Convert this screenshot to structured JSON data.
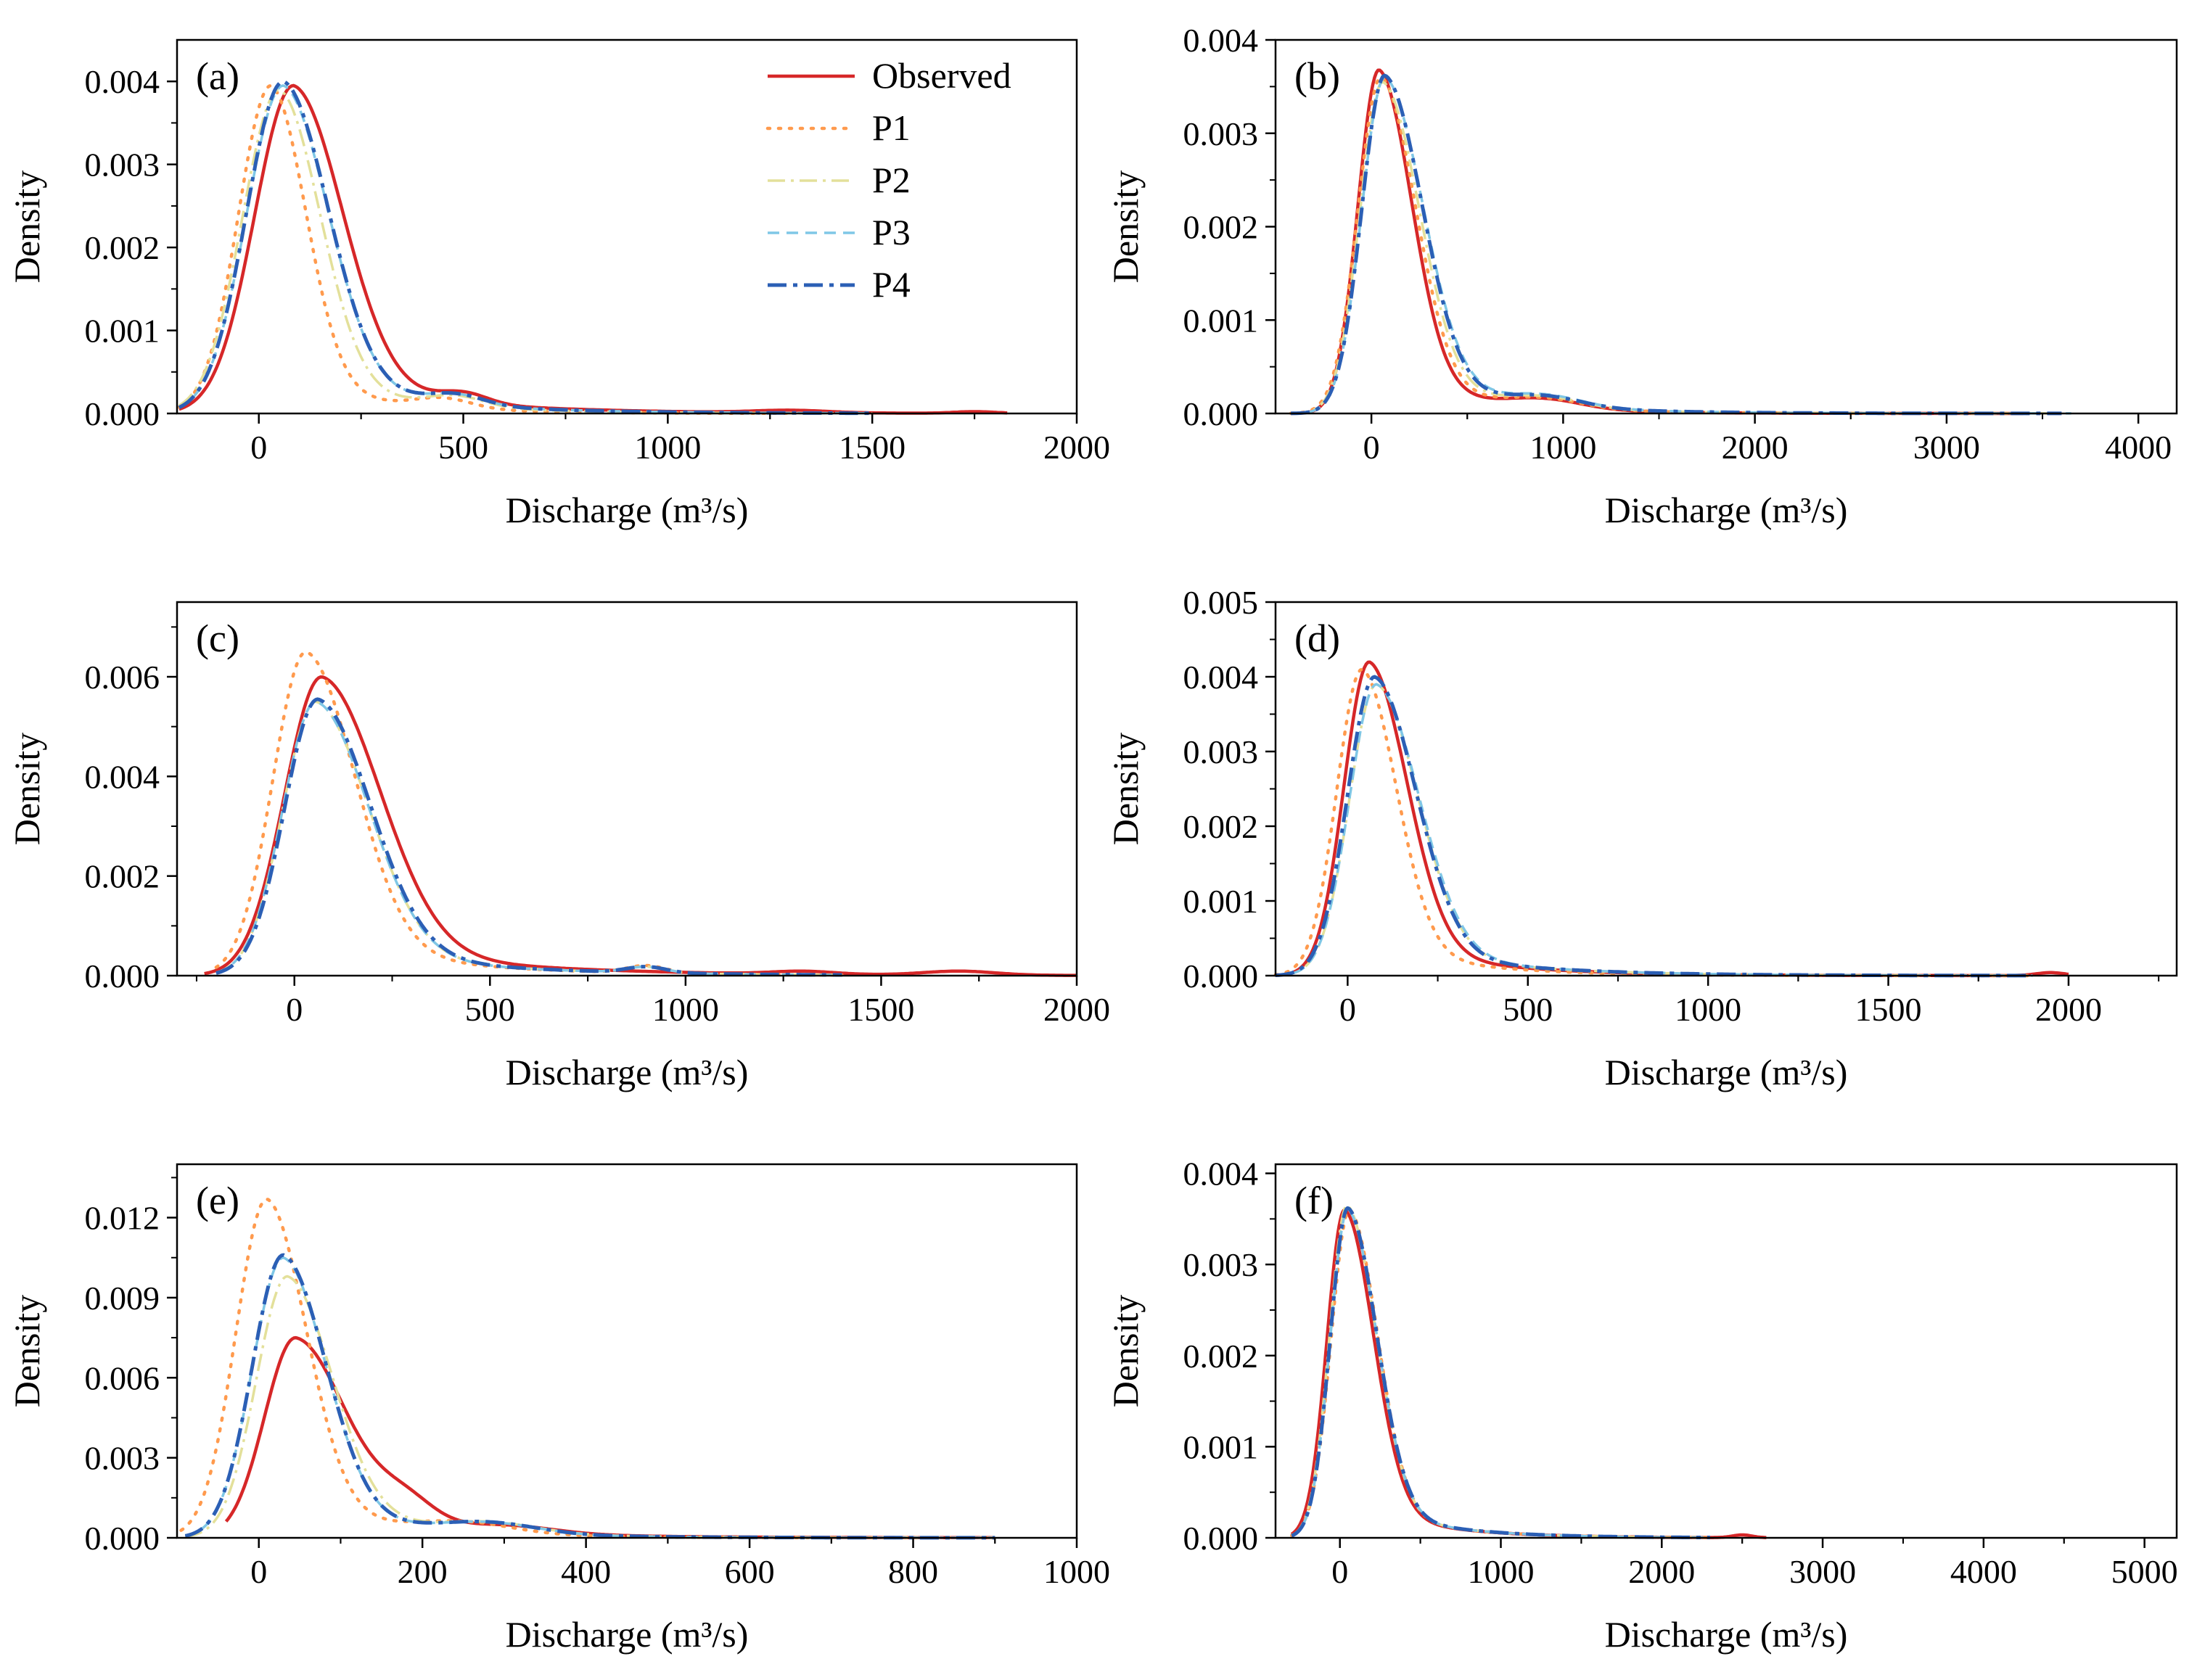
{
  "colors": {
    "Observed": "#d62728",
    "P1": "#ff9a4d",
    "P2": "#e3e09a",
    "P3": "#7fc7e6",
    "P4": "#2b5fb5"
  },
  "legend": {
    "entries": [
      "Observed",
      "P1",
      "P2",
      "P3",
      "P4"
    ]
  },
  "chart_data": [
    {
      "type": "line",
      "panel_label": "(a)",
      "xlabel": "Discharge (m³/s)",
      "ylabel": "Density",
      "xlim": [
        -200,
        2000
      ],
      "ylim": [
        0,
        0.0045
      ],
      "xticks": [
        0,
        500,
        1000,
        1500,
        2000
      ],
      "xtick_labels": [
        "0",
        "500",
        "1000",
        "1500",
        "2000"
      ],
      "yticks": [
        0,
        0.001,
        0.002,
        0.003,
        0.004
      ],
      "ytick_labels": [
        "0.000",
        "0.001",
        "0.002",
        "0.003",
        "0.004"
      ],
      "legend_shown": true,
      "series": [
        {
          "name": "Observed",
          "peak_x": 85,
          "peak_y": 0.00395,
          "sl": 95,
          "sr": 120,
          "x_min": -195,
          "x_max": 1830,
          "bumps": [
            [
              500,
              0.00013,
              60
            ],
            [
              1300,
              3e-05,
              90
            ],
            [
              1750,
              2e-05,
              50
            ]
          ]
        },
        {
          "name": "P1",
          "peak_x": 30,
          "peak_y": 0.00395,
          "sl": 80,
          "sr": 85,
          "x_min": -195,
          "x_max": 1300,
          "bumps": [
            [
              450,
              0.00012,
              70
            ]
          ]
        },
        {
          "name": "P2",
          "peak_x": 50,
          "peak_y": 0.0039,
          "sl": 90,
          "sr": 100,
          "x_min": -195,
          "x_max": 1500,
          "bumps": [
            [
              480,
              0.00013,
              70
            ]
          ]
        },
        {
          "name": "P3",
          "peak_x": 60,
          "peak_y": 0.00395,
          "sl": 90,
          "sr": 110,
          "x_min": -195,
          "x_max": 1500,
          "bumps": [
            [
              480,
              0.00013,
              70
            ]
          ]
        },
        {
          "name": "P4",
          "peak_x": 60,
          "peak_y": 0.004,
          "sl": 90,
          "sr": 110,
          "x_min": -195,
          "x_max": 1500,
          "bumps": [
            [
              480,
              0.00013,
              70
            ]
          ]
        }
      ]
    },
    {
      "type": "line",
      "panel_label": "(b)",
      "xlabel": "Discharge (m³/s)",
      "ylabel": "Density",
      "xlim": [
        -500,
        4200
      ],
      "ylim": [
        0,
        0.004
      ],
      "xticks": [
        0,
        1000,
        2000,
        3000,
        4000
      ],
      "xtick_labels": [
        "0",
        "1000",
        "2000",
        "3000",
        "4000"
      ],
      "yticks": [
        0,
        0.001,
        0.002,
        0.003,
        0.004
      ],
      "ytick_labels": [
        "0.000",
        "0.001",
        "0.002",
        "0.003",
        "0.004"
      ],
      "legend_shown": false,
      "series": [
        {
          "name": "Observed",
          "peak_x": 40,
          "peak_y": 0.00368,
          "sl": 110,
          "sr": 170,
          "x_min": -420,
          "x_max": 3400,
          "bumps": [
            [
              900,
              0.0001,
              200
            ]
          ]
        },
        {
          "name": "P1",
          "peak_x": 50,
          "peak_y": 0.0036,
          "sl": 120,
          "sr": 180,
          "x_min": -420,
          "x_max": 3500,
          "bumps": [
            [
              900,
              0.0001,
              200
            ]
          ]
        },
        {
          "name": "P2",
          "peak_x": 60,
          "peak_y": 0.00355,
          "sl": 120,
          "sr": 190,
          "x_min": -420,
          "x_max": 3600,
          "bumps": [
            [
              900,
              0.00011,
              200
            ]
          ]
        },
        {
          "name": "P3",
          "peak_x": 70,
          "peak_y": 0.0036,
          "sl": 120,
          "sr": 200,
          "x_min": -420,
          "x_max": 3650,
          "bumps": [
            [
              900,
              0.00012,
              200
            ]
          ]
        },
        {
          "name": "P4",
          "peak_x": 70,
          "peak_y": 0.00362,
          "sl": 120,
          "sr": 195,
          "x_min": -420,
          "x_max": 3600,
          "bumps": [
            [
              900,
              0.00011,
              200
            ]
          ]
        }
      ]
    },
    {
      "type": "line",
      "panel_label": "(c)",
      "xlabel": "Discharge (m³/s)",
      "ylabel": "Density",
      "xlim": [
        -300,
        2000
      ],
      "ylim": [
        0,
        0.0075
      ],
      "xticks": [
        0,
        500,
        1000,
        1500,
        2000
      ],
      "xtick_labels": [
        "0",
        "500",
        "1000",
        "1500",
        "2000"
      ],
      "yticks": [
        0,
        0.002,
        0.004,
        0.006
      ],
      "ytick_labels": [
        "0.000",
        "0.002",
        "0.004",
        "0.006"
      ],
      "legend_shown": false,
      "series": [
        {
          "name": "Observed",
          "peak_x": 70,
          "peak_y": 0.006,
          "sl": 95,
          "sr": 150,
          "x_min": -230,
          "x_max": 2000,
          "bumps": [
            [
              1300,
              6e-05,
              80
            ],
            [
              1700,
              8e-05,
              90
            ]
          ]
        },
        {
          "name": "P1",
          "peak_x": 30,
          "peak_y": 0.0065,
          "sl": 85,
          "sr": 125,
          "x_min": -200,
          "x_max": 1400,
          "bumps": [
            [
              900,
              0.00015,
              50
            ]
          ]
        },
        {
          "name": "P2",
          "peak_x": 55,
          "peak_y": 0.0055,
          "sl": 85,
          "sr": 135,
          "x_min": -200,
          "x_max": 1400,
          "bumps": [
            [
              900,
              0.00012,
              50
            ]
          ]
        },
        {
          "name": "P3",
          "peak_x": 55,
          "peak_y": 0.0055,
          "sl": 85,
          "sr": 135,
          "x_min": -200,
          "x_max": 1400,
          "bumps": [
            [
              900,
              0.00012,
              50
            ]
          ]
        },
        {
          "name": "P4",
          "peak_x": 60,
          "peak_y": 0.00555,
          "sl": 85,
          "sr": 135,
          "x_min": -200,
          "x_max": 1400,
          "bumps": [
            [
              900,
              0.00012,
              50
            ]
          ]
        }
      ]
    },
    {
      "type": "line",
      "panel_label": "(d)",
      "xlabel": "Discharge (m³/s)",
      "ylabel": "Density",
      "xlim": [
        -200,
        2300
      ],
      "ylim": [
        0,
        0.005
      ],
      "xticks": [
        0,
        500,
        1000,
        1500,
        2000
      ],
      "xtick_labels": [
        "0",
        "500",
        "1000",
        "1500",
        "2000"
      ],
      "yticks": [
        0,
        0.001,
        0.002,
        0.003,
        0.004,
        0.005
      ],
      "ytick_labels": [
        "0.000",
        "0.001",
        "0.002",
        "0.003",
        "0.004",
        "0.005"
      ],
      "legend_shown": false,
      "series": [
        {
          "name": "Observed",
          "peak_x": 60,
          "peak_y": 0.0042,
          "sl": 70,
          "sr": 105,
          "x_min": -200,
          "x_max": 2000,
          "bumps": [
            [
              1950,
              4e-05,
              40
            ]
          ]
        },
        {
          "name": "P1",
          "peak_x": 40,
          "peak_y": 0.0041,
          "sl": 70,
          "sr": 95,
          "x_min": -200,
          "x_max": 1900,
          "bumps": []
        },
        {
          "name": "P2",
          "peak_x": 80,
          "peak_y": 0.0039,
          "sl": 75,
          "sr": 115,
          "x_min": -200,
          "x_max": 1900,
          "bumps": []
        },
        {
          "name": "P3",
          "peak_x": 80,
          "peak_y": 0.0039,
          "sl": 75,
          "sr": 118,
          "x_min": -200,
          "x_max": 1900,
          "bumps": []
        },
        {
          "name": "P4",
          "peak_x": 75,
          "peak_y": 0.004,
          "sl": 75,
          "sr": 115,
          "x_min": -200,
          "x_max": 1900,
          "bumps": []
        }
      ]
    },
    {
      "type": "line",
      "panel_label": "(e)",
      "xlabel": "Discharge (m³/s)",
      "ylabel": "Density",
      "xlim": [
        -100,
        1000
      ],
      "ylim": [
        0,
        0.014
      ],
      "xticks": [
        0,
        200,
        400,
        600,
        800,
        1000
      ],
      "xtick_labels": [
        "0",
        "200",
        "400",
        "600",
        "800",
        "1000"
      ],
      "yticks": [
        0,
        0.003,
        0.006,
        0.009,
        0.012
      ],
      "ytick_labels": [
        "0.000",
        "0.003",
        "0.006",
        "0.009",
        "0.012"
      ],
      "legend_shown": false,
      "series": [
        {
          "name": "Observed",
          "peak_x": 45,
          "peak_y": 0.0075,
          "sl": 38,
          "sr": 62,
          "x_min": -40,
          "x_max": 900,
          "bumps": [
            [
              180,
              0.0009,
              35
            ],
            [
              300,
              0.0003,
              60
            ]
          ]
        },
        {
          "name": "P1",
          "peak_x": 10,
          "peak_y": 0.0127,
          "sl": 38,
          "sr": 48,
          "x_min": -95,
          "x_max": 900,
          "bumps": [
            [
              250,
              0.0004,
              60
            ]
          ]
        },
        {
          "name": "P2",
          "peak_x": 35,
          "peak_y": 0.0098,
          "sl": 38,
          "sr": 55,
          "x_min": -90,
          "x_max": 900,
          "bumps": [
            [
              280,
              0.0004,
              60
            ]
          ]
        },
        {
          "name": "P3",
          "peak_x": 30,
          "peak_y": 0.0105,
          "sl": 38,
          "sr": 52,
          "x_min": -90,
          "x_max": 900,
          "bumps": [
            [
              280,
              0.0004,
              60
            ]
          ]
        },
        {
          "name": "P4",
          "peak_x": 30,
          "peak_y": 0.0106,
          "sl": 38,
          "sr": 52,
          "x_min": -90,
          "x_max": 900,
          "bumps": [
            [
              280,
              0.0004,
              60
            ]
          ]
        }
      ]
    },
    {
      "type": "line",
      "panel_label": "(f)",
      "xlabel": "Discharge (m³/s)",
      "ylabel": "Density",
      "xlim": [
        -400,
        5200
      ],
      "ylim": [
        0,
        0.0041
      ],
      "xticks": [
        0,
        1000,
        2000,
        3000,
        4000,
        5000
      ],
      "xtick_labels": [
        "0",
        "1000",
        "2000",
        "3000",
        "4000",
        "5000"
      ],
      "yticks": [
        0,
        0.001,
        0.002,
        0.003,
        0.004
      ],
      "ytick_labels": [
        "0.000",
        "0.001",
        "0.002",
        "0.003",
        "0.004"
      ],
      "legend_shown": false,
      "series": [
        {
          "name": "Observed",
          "peak_x": 30,
          "peak_y": 0.0036,
          "sl": 110,
          "sr": 180,
          "x_min": -300,
          "x_max": 2650,
          "bumps": [
            [
              2500,
              3e-05,
              60
            ]
          ]
        },
        {
          "name": "P1",
          "peak_x": 60,
          "peak_y": 0.0036,
          "sl": 115,
          "sr": 175,
          "x_min": -300,
          "x_max": 2300,
          "bumps": []
        },
        {
          "name": "P2",
          "peak_x": 45,
          "peak_y": 0.00365,
          "sl": 110,
          "sr": 180,
          "x_min": -300,
          "x_max": 2300,
          "bumps": []
        },
        {
          "name": "P3",
          "peak_x": 50,
          "peak_y": 0.0036,
          "sl": 110,
          "sr": 180,
          "x_min": -300,
          "x_max": 2300,
          "bumps": []
        },
        {
          "name": "P4",
          "peak_x": 50,
          "peak_y": 0.00362,
          "sl": 110,
          "sr": 180,
          "x_min": -300,
          "x_max": 2300,
          "bumps": []
        }
      ]
    }
  ]
}
